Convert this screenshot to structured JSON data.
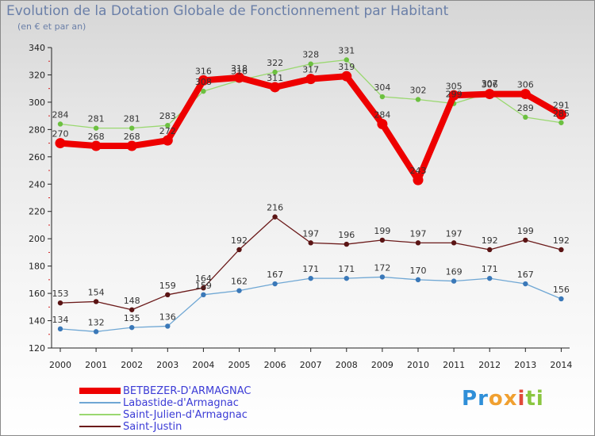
{
  "title": "Evolution de la Dotation Globale de Fonctionnement par Habitant",
  "subtitle": "(en € et par an)",
  "brand": {
    "text": [
      "P",
      "r",
      "o",
      "x",
      "i",
      "t",
      "i"
    ],
    "colors": [
      "#2f8fd8",
      "#2f8fd8",
      "#f0a030",
      "#f0a030",
      "#e04a3a",
      "#8ac640",
      "#8ac640"
    ]
  },
  "chart_data": {
    "type": "line",
    "title": "Evolution de la Dotation Globale de Fonctionnement par Habitant",
    "subtitle": "(en € et par an)",
    "xlabel": "",
    "ylabel": "",
    "ylim": [
      120,
      340
    ],
    "yticks": [
      120,
      140,
      160,
      180,
      200,
      220,
      240,
      260,
      280,
      300,
      320,
      340
    ],
    "grid": false,
    "legend_position": "bottom-left",
    "x": [
      2000,
      2001,
      2002,
      2003,
      2004,
      2005,
      2006,
      2007,
      2008,
      2009,
      2010,
      2011,
      2012,
      2013,
      2014
    ],
    "series": [
      {
        "name": "Saint-Justin",
        "color": "#6b1a1a",
        "point_color": "#5a1414",
        "values": [
          153,
          154,
          148,
          159,
          164,
          192,
          216,
          197,
          196,
          199,
          197,
          197,
          192,
          199,
          192
        ],
        "labels": [
          "153",
          "154",
          "148",
          "159",
          "164",
          "192",
          "216",
          "197",
          "196",
          "199",
          "197",
          "197",
          "192",
          "199",
          "192"
        ]
      },
      {
        "name": "Labastide-d'Armagnac",
        "color": "#6fa7d4",
        "point_color": "#3a78b8",
        "values": [
          134,
          132,
          135,
          136,
          159,
          162,
          167,
          171,
          171,
          172,
          170,
          169,
          171,
          167,
          156
        ],
        "labels": [
          "134",
          "132",
          "135",
          "136",
          "159",
          "162",
          "167",
          "171",
          "171",
          "172",
          "170",
          "169",
          "171",
          "167",
          "156"
        ]
      },
      {
        "name": "Saint-Julien-d'Armagnac",
        "color": "#9ad870",
        "point_color": "#6cc040",
        "values": [
          284,
          281,
          281,
          283,
          308,
          316,
          322,
          328,
          331,
          304,
          302,
          299,
          307,
          289,
          285
        ],
        "labels": [
          "284",
          "281",
          "281",
          "283",
          "308",
          "316",
          "322",
          "328",
          "331",
          "304",
          "302",
          "299",
          "307",
          "289",
          "285"
        ]
      },
      {
        "name": "BETBEZER-D'ARMAGNAC",
        "color": "#ee0000",
        "point_color": "#ee0000",
        "values": [
          270,
          268,
          268,
          272,
          316,
          318,
          311,
          317,
          319,
          284,
          243,
          305,
          306,
          306,
          291
        ],
        "labels": [
          "270",
          "268",
          "268",
          "272",
          "316",
          "318",
          "311",
          "317",
          "319",
          "284",
          "243",
          "305",
          "306",
          "306",
          "291"
        ]
      }
    ],
    "legend": [
      {
        "name": "BETBEZER-D'ARMAGNAC",
        "color": "#ee0000",
        "width": 8
      },
      {
        "name": "Labastide-d'Armagnac",
        "color": "#6fa7d4",
        "width": 2
      },
      {
        "name": "Saint-Julien-d'Armagnac",
        "color": "#9ad870",
        "width": 2
      },
      {
        "name": "Saint-Justin",
        "color": "#6b1a1a",
        "width": 2
      }
    ]
  }
}
